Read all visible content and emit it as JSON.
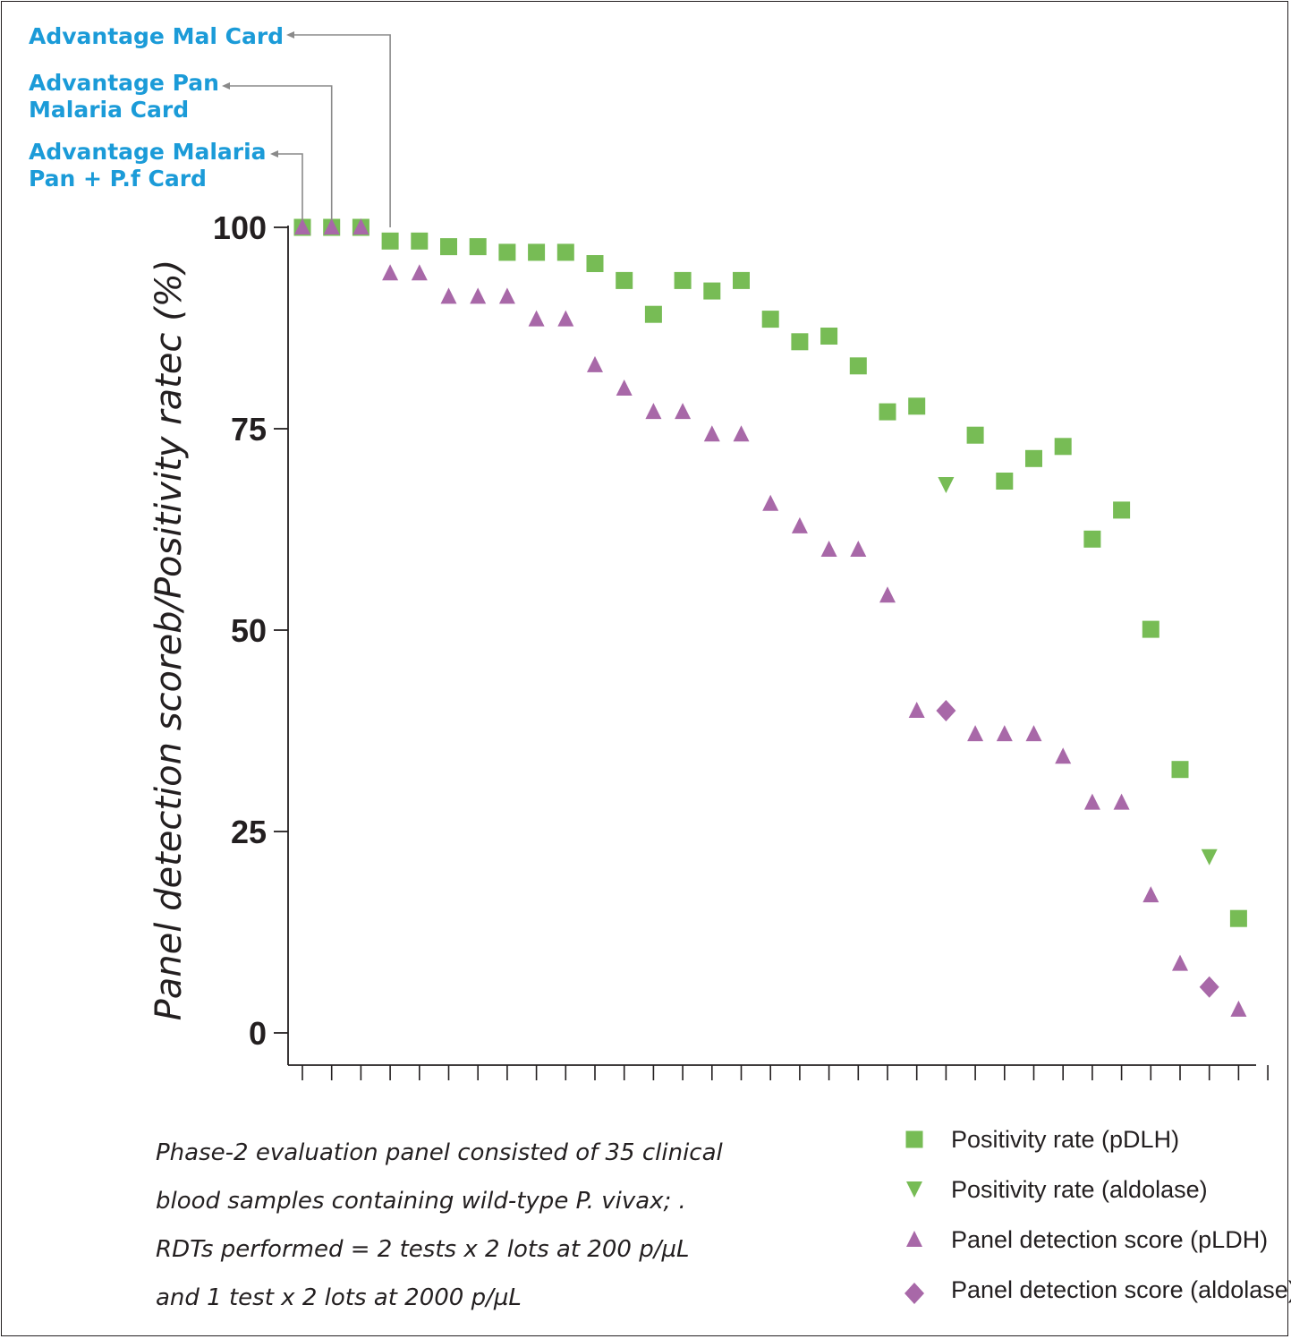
{
  "colors": {
    "green": "#77bc55",
    "purple": "#a868a8",
    "blue": "#1b9bd8",
    "ink": "#231f20",
    "arrow": "#8a8a8a"
  },
  "callouts": [
    {
      "lines": [
        "Advantage Mal Card"
      ],
      "x_index": 4
    },
    {
      "lines": [
        "Advantage Pan",
        "Malaria Card"
      ],
      "x_index": 2
    },
    {
      "lines": [
        "Advantage Malaria",
        "Pan + P.f Card"
      ],
      "x_index": 1
    }
  ],
  "note": [
    "Phase-2 evaluation panel consisted of 35 clinical",
    "blood samples containing wild-type P. vivax; .",
    "RDTs performed = 2 tests x 2 lots at 200 p/µL",
    "and 1 test x 2 lots at 2000 p/µL"
  ],
  "chart_data": {
    "type": "scatter",
    "title": "",
    "xlabel": "",
    "ylabel": "Panel detection scoreb/Positivity ratec (%)",
    "x": [
      1,
      2,
      3,
      4,
      5,
      6,
      7,
      8,
      9,
      10,
      11,
      12,
      13,
      14,
      15,
      16,
      17,
      18,
      19,
      20,
      21,
      22,
      23,
      24,
      25,
      26,
      27,
      28,
      29,
      30,
      31,
      32,
      33,
      34
    ],
    "xlim": [
      0.5,
      34.5
    ],
    "ylim": [
      0,
      100
    ],
    "yticks": [
      0,
      25,
      50,
      75,
      100
    ],
    "tick_labels": [
      "0",
      "25",
      "50",
      "75",
      "100"
    ],
    "legend_position": "bottom-right",
    "series": [
      {
        "name": "Positivity rate (pDLH)",
        "marker": "square",
        "color": "#77bc55",
        "points": [
          [
            1,
            100
          ],
          [
            2,
            100
          ],
          [
            3,
            100
          ],
          [
            4,
            98.3
          ],
          [
            5,
            98.3
          ],
          [
            6,
            97.6
          ],
          [
            7,
            97.6
          ],
          [
            8,
            96.9
          ],
          [
            9,
            96.9
          ],
          [
            10,
            96.9
          ],
          [
            11,
            95.5
          ],
          [
            12,
            93.4
          ],
          [
            13,
            89.2
          ],
          [
            14,
            93.4
          ],
          [
            15,
            92.1
          ],
          [
            16,
            93.4
          ],
          [
            17,
            88.6
          ],
          [
            18,
            85.8
          ],
          [
            19,
            86.5
          ],
          [
            20,
            82.8
          ],
          [
            21,
            77.1
          ],
          [
            22,
            77.8
          ],
          [
            24,
            74.2
          ],
          [
            25,
            68.5
          ],
          [
            26,
            71.3
          ],
          [
            27,
            72.8
          ],
          [
            28,
            61.3
          ],
          [
            29,
            64.9
          ],
          [
            30,
            50.1
          ],
          [
            31,
            32.7
          ],
          [
            33,
            14.2
          ]
        ]
      },
      {
        "name": "Positivity rate (aldolase)",
        "marker": "triangle-down",
        "color": "#77bc55",
        "points": [
          [
            23,
            68.0
          ],
          [
            32,
            21.8
          ]
        ]
      },
      {
        "name": "Panel detection score (pLDH)",
        "marker": "triangle-up",
        "color": "#a868a8",
        "points": [
          [
            1,
            100
          ],
          [
            2,
            100
          ],
          [
            3,
            100
          ],
          [
            4,
            94.3
          ],
          [
            5,
            94.3
          ],
          [
            6,
            91.4
          ],
          [
            7,
            91.4
          ],
          [
            8,
            91.4
          ],
          [
            9,
            88.6
          ],
          [
            10,
            88.6
          ],
          [
            11,
            82.9
          ],
          [
            12,
            80.0
          ],
          [
            13,
            77.1
          ],
          [
            14,
            77.1
          ],
          [
            15,
            74.3
          ],
          [
            16,
            74.3
          ],
          [
            17,
            65.7
          ],
          [
            18,
            62.9
          ],
          [
            19,
            60.0
          ],
          [
            20,
            60.0
          ],
          [
            21,
            54.3
          ],
          [
            22,
            40.0
          ],
          [
            24,
            37.1
          ],
          [
            25,
            37.1
          ],
          [
            26,
            37.1
          ],
          [
            27,
            34.3
          ],
          [
            28,
            28.6
          ],
          [
            29,
            28.6
          ],
          [
            30,
            17.1
          ],
          [
            31,
            8.6
          ],
          [
            33,
            2.9
          ]
        ]
      },
      {
        "name": "Panel detection score (aldolase)",
        "marker": "diamond",
        "color": "#a868a8",
        "points": [
          [
            23,
            40.0
          ],
          [
            32,
            5.7
          ]
        ]
      }
    ]
  }
}
